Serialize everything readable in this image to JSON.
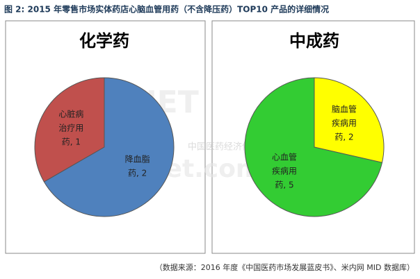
{
  "title": "图 2: 2015 年零售市场实体药店心脑血管用药（不含降压药）TOP10 产品的详细情况",
  "source": "（数据来源：2016 年度《中国医药市场发展蓝皮书》、米内网 MID 数据库）",
  "watermark": [
    "MENET",
    "中国医药经济信息网一平台",
    "menet.com.cn"
  ],
  "chart_data": [
    {
      "type": "pie",
      "title": "化学药",
      "values": [
        1,
        2
      ],
      "value_labels": [
        "心脏病治疗用药, 1",
        "降血脂药, 2"
      ],
      "colors": [
        "#c0504d",
        "#4f81bd"
      ],
      "direction": "counterclockwise"
    },
    {
      "type": "pie",
      "title": "中成药",
      "values": [
        2,
        5
      ],
      "value_labels": [
        "脑血管疾病用药, 2",
        "心血管疾病用药, 5"
      ],
      "colors": [
        "#ffff00",
        "#33cc33"
      ],
      "direction": "clockwise"
    }
  ]
}
